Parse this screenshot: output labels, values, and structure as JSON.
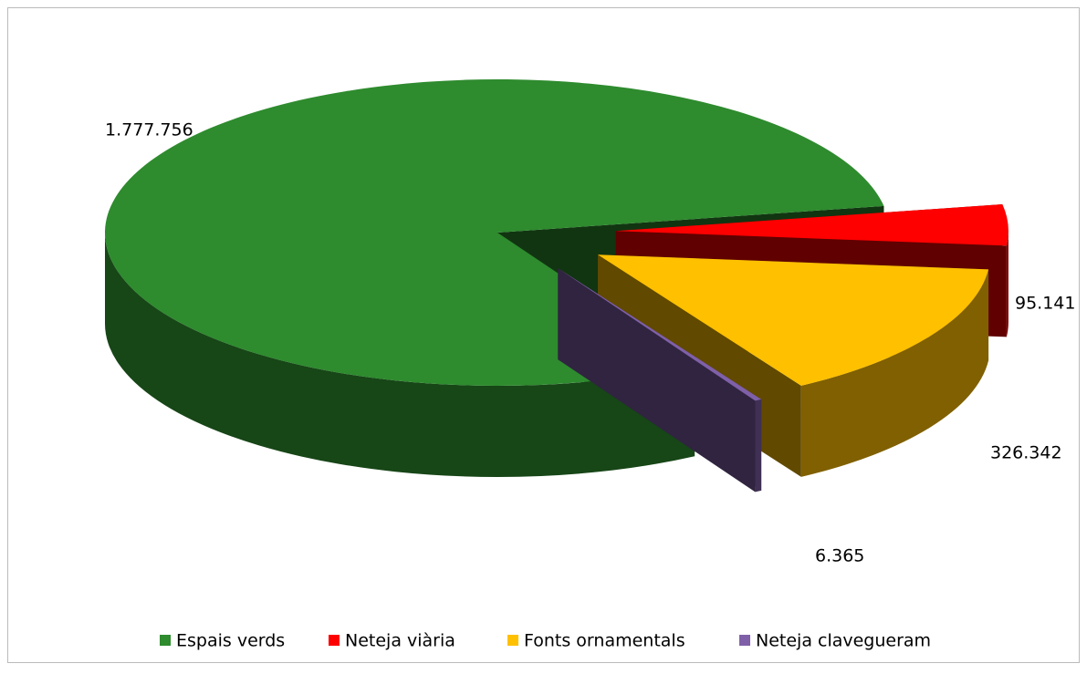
{
  "chart_data": {
    "type": "pie",
    "categories": [
      "Espais verds",
      "Neteja viària",
      "Fonts ornamentals",
      "Neteja clavegueram"
    ],
    "values": [
      1777756,
      95141,
      326342,
      6365
    ],
    "value_labels": [
      "1.777.756",
      "95.141",
      "326.342",
      "6.365"
    ],
    "colors": [
      "#2e8b2e",
      "#ff0000",
      "#ffc000",
      "#7f60a8"
    ],
    "legend": "bottom"
  }
}
